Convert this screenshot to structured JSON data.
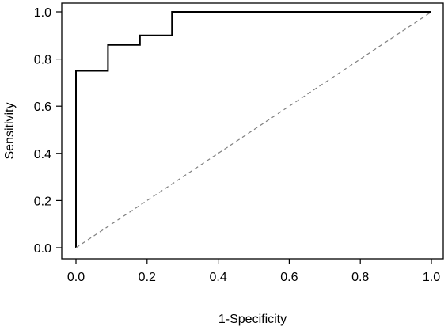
{
  "chart_data": {
    "type": "line",
    "title": "",
    "xlabel": "1-Specificity",
    "ylabel": "Sensitivity",
    "xlim": [
      0.0,
      1.0
    ],
    "ylim": [
      0.0,
      1.0
    ],
    "xticks": [
      0.0,
      0.2,
      0.4,
      0.6,
      0.8,
      1.0
    ],
    "xtick_labels": [
      "0.0",
      "0.2",
      "0.4",
      "0.6",
      "0.8",
      "1.0"
    ],
    "yticks": [
      0.0,
      0.2,
      0.4,
      0.6,
      0.8,
      1.0
    ],
    "ytick_labels": [
      "0.0",
      "0.2",
      "0.4",
      "0.6",
      "0.8",
      "1.0"
    ],
    "grid": false,
    "legend": "none",
    "series": [
      {
        "style": "solid step",
        "color": "#000000",
        "x": [
          0.0,
          0.0,
          0.0,
          0.09,
          0.09,
          0.18,
          0.18,
          0.27,
          0.27,
          1.0
        ],
        "y": [
          0.0,
          0.75,
          0.75,
          0.75,
          0.86,
          0.86,
          0.9,
          0.9,
          1.0,
          1.0
        ]
      },
      {
        "style": "dashed diagonal",
        "color": "#808080",
        "x": [
          0.0,
          1.0
        ],
        "y": [
          0.0,
          1.0
        ]
      }
    ]
  }
}
